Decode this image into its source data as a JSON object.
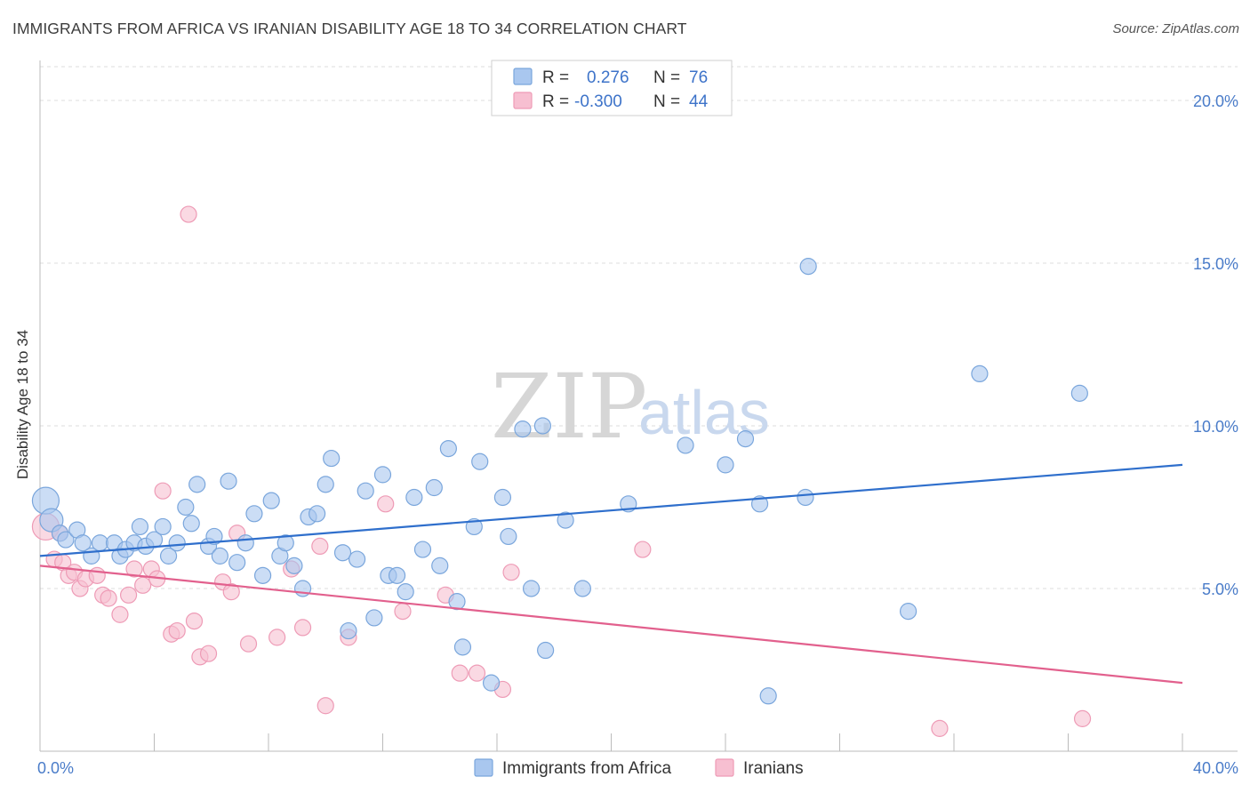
{
  "title": "IMMIGRANTS FROM AFRICA VS IRANIAN DISABILITY AGE 18 TO 34 CORRELATION CHART",
  "source": "Source: ZipAtlas.com",
  "watermark": {
    "zip": "ZIP",
    "atlas": "atlas"
  },
  "colors": {
    "africa_fill": "#a9c7ef",
    "africa_stroke": "#7aa6dc",
    "africa_line": "#2f6fcc",
    "iran_fill": "#f7bfd1",
    "iran_stroke": "#ee9bb6",
    "iran_line": "#e2608d",
    "grid": "#dcdcdc",
    "tick_label": "#4a7cc9"
  },
  "legend": {
    "rows": [
      {
        "r_label": "R =",
        "r_value": "0.276",
        "n_label": "N =",
        "n_value": "76"
      },
      {
        "r_label": "R =",
        "r_value": "-0.300",
        "n_label": "N =",
        "n_value": "44"
      }
    ]
  },
  "chart_data": {
    "type": "scatter",
    "ylabel": "Disability Age 18 to 34",
    "xlim": [
      0,
      40
    ],
    "ylim": [
      0,
      20
    ],
    "x_tick_labels": [
      "0.0%",
      "40.0%"
    ],
    "y_ticks": [
      5,
      10,
      15,
      20
    ],
    "y_tick_labels": [
      "5.0%",
      "10.0%",
      "15.0%",
      "20.0%"
    ],
    "legend_position": "top-center",
    "grid": true,
    "series": [
      {
        "name": "Immigrants from Africa",
        "r": 0.276,
        "n": 76,
        "trend": {
          "x": [
            0,
            40
          ],
          "y": [
            6.0,
            8.8
          ]
        },
        "points": [
          [
            0.2,
            7.7
          ],
          [
            0.4,
            7.1
          ],
          [
            0.7,
            6.7
          ],
          [
            0.9,
            6.5
          ],
          [
            1.3,
            6.8
          ],
          [
            1.5,
            6.4
          ],
          [
            1.8,
            6.0
          ],
          [
            2.1,
            6.4
          ],
          [
            2.6,
            6.4
          ],
          [
            2.8,
            6.0
          ],
          [
            3.0,
            6.2
          ],
          [
            3.3,
            6.4
          ],
          [
            3.5,
            6.9
          ],
          [
            3.7,
            6.3
          ],
          [
            4.0,
            6.5
          ],
          [
            4.3,
            6.9
          ],
          [
            4.5,
            6.0
          ],
          [
            4.8,
            6.4
          ],
          [
            5.1,
            7.5
          ],
          [
            5.3,
            7.0
          ],
          [
            5.5,
            8.2
          ],
          [
            5.9,
            6.3
          ],
          [
            6.1,
            6.6
          ],
          [
            6.3,
            6.0
          ],
          [
            6.6,
            8.3
          ],
          [
            6.9,
            5.8
          ],
          [
            7.2,
            6.4
          ],
          [
            7.5,
            7.3
          ],
          [
            7.8,
            5.4
          ],
          [
            8.1,
            7.7
          ],
          [
            8.4,
            6.0
          ],
          [
            8.6,
            6.4
          ],
          [
            8.9,
            5.7
          ],
          [
            9.2,
            5.0
          ],
          [
            9.4,
            7.2
          ],
          [
            9.7,
            7.3
          ],
          [
            10.0,
            8.2
          ],
          [
            10.2,
            9.0
          ],
          [
            10.6,
            6.1
          ],
          [
            10.8,
            3.7
          ],
          [
            11.1,
            5.9
          ],
          [
            11.4,
            8.0
          ],
          [
            11.7,
            4.1
          ],
          [
            12.0,
            8.5
          ],
          [
            12.2,
            5.4
          ],
          [
            12.5,
            5.4
          ],
          [
            12.8,
            4.9
          ],
          [
            13.1,
            7.8
          ],
          [
            13.4,
            6.2
          ],
          [
            13.8,
            8.1
          ],
          [
            14.0,
            5.7
          ],
          [
            14.3,
            9.3
          ],
          [
            14.6,
            4.6
          ],
          [
            14.8,
            3.2
          ],
          [
            15.2,
            6.9
          ],
          [
            15.4,
            8.9
          ],
          [
            15.8,
            2.1
          ],
          [
            16.2,
            7.8
          ],
          [
            16.4,
            6.6
          ],
          [
            16.9,
            9.9
          ],
          [
            17.2,
            5.0
          ],
          [
            17.6,
            10.0
          ],
          [
            17.7,
            3.1
          ],
          [
            18.4,
            7.1
          ],
          [
            19.0,
            5.0
          ],
          [
            20.6,
            7.6
          ],
          [
            22.6,
            9.4
          ],
          [
            24.0,
            8.8
          ],
          [
            24.7,
            9.6
          ],
          [
            25.2,
            7.6
          ],
          [
            25.5,
            1.7
          ],
          [
            26.8,
            7.8
          ],
          [
            26.9,
            14.9
          ],
          [
            30.4,
            4.3
          ],
          [
            32.9,
            11.6
          ],
          [
            36.4,
            11.0
          ]
        ]
      },
      {
        "name": "Iranians",
        "r": -0.3,
        "n": 44,
        "trend": {
          "x": [
            0,
            40
          ],
          "y": [
            5.7,
            2.1
          ]
        },
        "points": [
          [
            0.2,
            6.9
          ],
          [
            0.5,
            5.9
          ],
          [
            0.7,
            6.7
          ],
          [
            0.8,
            5.8
          ],
          [
            1.0,
            5.4
          ],
          [
            1.2,
            5.5
          ],
          [
            1.4,
            5.0
          ],
          [
            1.6,
            5.3
          ],
          [
            2.0,
            5.4
          ],
          [
            2.2,
            4.8
          ],
          [
            2.4,
            4.7
          ],
          [
            2.8,
            4.2
          ],
          [
            3.1,
            4.8
          ],
          [
            3.3,
            5.6
          ],
          [
            3.6,
            5.1
          ],
          [
            3.9,
            5.6
          ],
          [
            4.1,
            5.3
          ],
          [
            4.3,
            8.0
          ],
          [
            4.6,
            3.6
          ],
          [
            4.8,
            3.7
          ],
          [
            5.2,
            16.5
          ],
          [
            5.4,
            4.0
          ],
          [
            5.6,
            2.9
          ],
          [
            5.9,
            3.0
          ],
          [
            6.4,
            5.2
          ],
          [
            6.7,
            4.9
          ],
          [
            6.9,
            6.7
          ],
          [
            7.3,
            3.3
          ],
          [
            8.3,
            3.5
          ],
          [
            8.8,
            5.6
          ],
          [
            9.2,
            3.8
          ],
          [
            9.8,
            6.3
          ],
          [
            10.0,
            1.4
          ],
          [
            10.8,
            3.5
          ],
          [
            12.1,
            7.6
          ],
          [
            12.7,
            4.3
          ],
          [
            14.2,
            4.8
          ],
          [
            14.7,
            2.4
          ],
          [
            15.3,
            2.4
          ],
          [
            16.2,
            1.9
          ],
          [
            16.5,
            5.5
          ],
          [
            21.1,
            6.2
          ],
          [
            31.5,
            0.7
          ],
          [
            36.5,
            1.0
          ]
        ]
      }
    ]
  },
  "bottom_legend": [
    "Immigrants from Africa",
    "Iranians"
  ]
}
